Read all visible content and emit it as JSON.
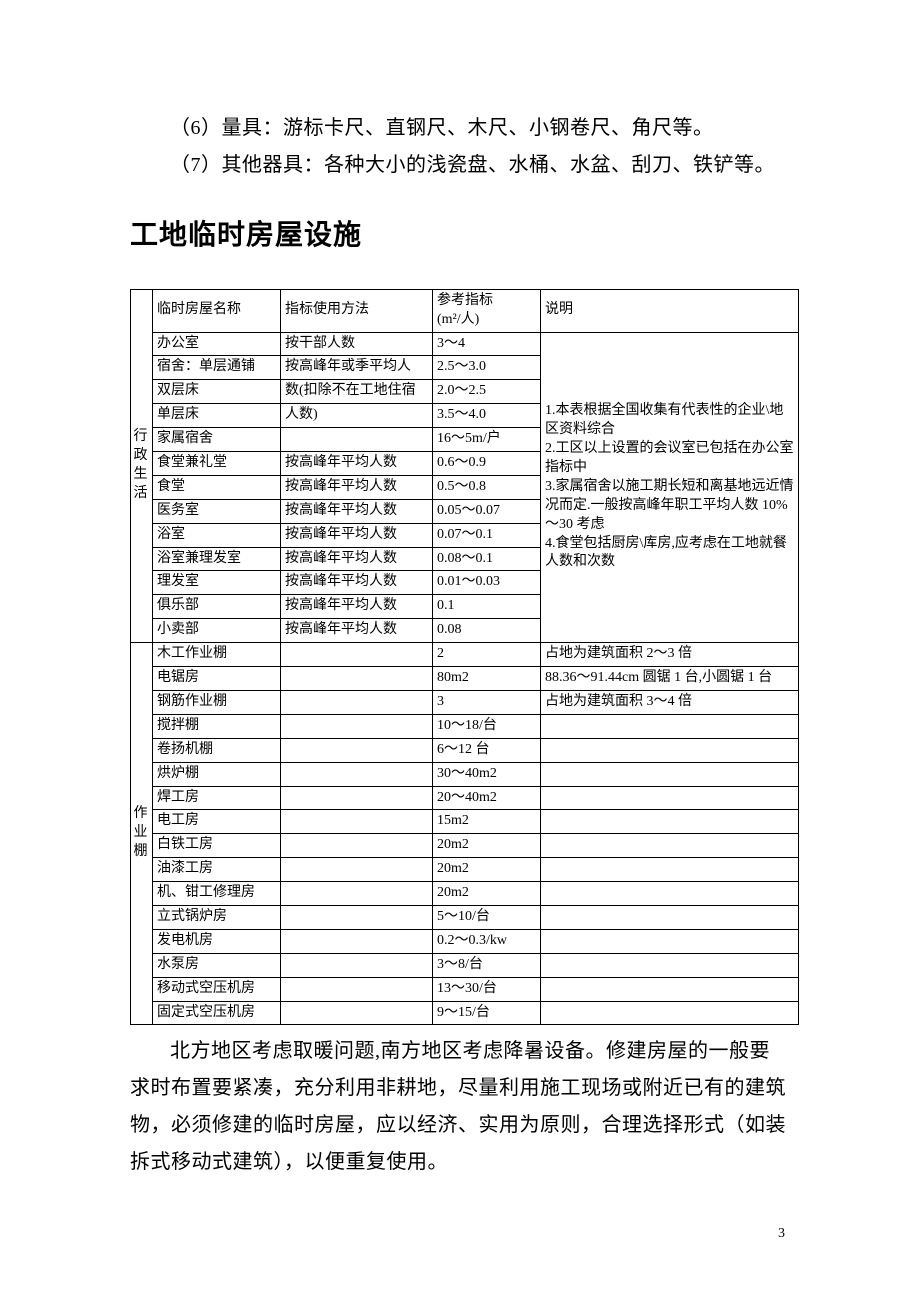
{
  "intro": {
    "p6": "（6）量具：游标卡尺、直钢尺、木尺、小钢卷尺、角尺等。",
    "p7": "（7）其他器具：各种大小的浅瓷盘、水桶、水盆、刮刀、铁铲等。"
  },
  "heading": "工地临时房屋设施",
  "table": {
    "header": {
      "col1": "临时房屋名称",
      "col2": "指标使用方法",
      "col3_line1": "参考指标",
      "col3_line2": "(m²/人)",
      "col4": "说明"
    },
    "group1": {
      "label": "行政生活",
      "note": "1.本表根据全国收集有代表性的企业\\地区资料综合\n2.工区以上设置的会议室已包括在办公室指标中\n3.家属宿舍以施工期长短和离基地远近情况而定.一般按高峰年职工平均人数 10%～30 考虑\n4.食堂包括厨房\\库房,应考虑在工地就餐人数和次数",
      "rows": [
        {
          "name": "办公室",
          "method": "按干部人数",
          "ref": "3～4"
        },
        {
          "name": "宿舍：单层通铺",
          "method": "按高峰年或季平均人",
          "ref": "2.5～3.0"
        },
        {
          "name": "双层床",
          "method": "数(扣除不在工地住宿",
          "ref": "2.0～2.5"
        },
        {
          "name": "单层床",
          "method": "人数)",
          "ref": "3.5～4.0"
        },
        {
          "name": "家属宿舍",
          "method": "",
          "ref": "16～5m/户"
        },
        {
          "name": "食堂兼礼堂",
          "method": "按高峰年平均人数",
          "ref": "0.6～0.9"
        },
        {
          "name": "食堂",
          "method": "按高峰年平均人数",
          "ref": "0.5～0.8"
        },
        {
          "name": "医务室",
          "method": "按高峰年平均人数",
          "ref": "0.05～0.07"
        },
        {
          "name": "浴室",
          "method": "按高峰年平均人数",
          "ref": "0.07～0.1"
        },
        {
          "name": "浴室兼理发室",
          "method": "按高峰年平均人数",
          "ref": "0.08～0.1"
        },
        {
          "name": "理发室",
          "method": "按高峰年平均人数",
          "ref": "0.01～0.03"
        },
        {
          "name": "俱乐部",
          "method": "按高峰年平均人数",
          "ref": "0.1"
        },
        {
          "name": "小卖部",
          "method": "按高峰年平均人数",
          "ref": "0.08"
        }
      ]
    },
    "group2": {
      "label": "作业棚",
      "rows": [
        {
          "name": "木工作业棚",
          "method": "",
          "ref": "2",
          "note": "占地为建筑面积 2～3 倍"
        },
        {
          "name": "电锯房",
          "method": "",
          "ref": "80m2",
          "note": "88.36～91.44cm 圆锯 1 台,小圆锯 1 台"
        },
        {
          "name": "钢筋作业棚",
          "method": "",
          "ref": "3",
          "note": "占地为建筑面积 3～4 倍"
        },
        {
          "name": "搅拌棚",
          "method": "",
          "ref": "10～18/台",
          "note": ""
        },
        {
          "name": "卷扬机棚",
          "method": "",
          "ref": "6～12 台",
          "note": ""
        },
        {
          "name": "烘炉棚",
          "method": "",
          "ref": "30～40m2",
          "note": ""
        },
        {
          "name": "焊工房",
          "method": "",
          "ref": "20～40m2",
          "note": ""
        },
        {
          "name": "电工房",
          "method": "",
          "ref": "15m2",
          "note": ""
        },
        {
          "name": "白铁工房",
          "method": "",
          "ref": "20m2",
          "note": ""
        },
        {
          "name": "油漆工房",
          "method": "",
          "ref": "20m2",
          "note": ""
        },
        {
          "name": "机、钳工修理房",
          "method": "",
          "ref": "20m2",
          "note": ""
        },
        {
          "name": "立式锅炉房",
          "method": "",
          "ref": "5～10/台",
          "note": ""
        },
        {
          "name": "发电机房",
          "method": "",
          "ref": "0.2～0.3/kw",
          "note": ""
        },
        {
          "name": "水泵房",
          "method": "",
          "ref": "3～8/台",
          "note": ""
        },
        {
          "name": "移动式空压机房",
          "method": "",
          "ref": "13～30/台",
          "note": ""
        },
        {
          "name": "固定式空压机房",
          "method": "",
          "ref": "9～15/台",
          "note": ""
        }
      ]
    }
  },
  "footer_para": "北方地区考虑取暖问题,南方地区考虑降暑设备。修建房屋的一般要求时布置要紧凑，充分利用非耕地，尽量利用施工现场或附近已有的建筑物，必须修建的临时房屋，应以经济、实用为原则，合理选择形式（如装拆式移动式建筑），以便重复使用。",
  "page_number": "3",
  "styling": {
    "body_font_size": 20,
    "table_font_size": 14,
    "heading_font_size": 28,
    "text_color": "#000000",
    "border_color": "#000000",
    "background": "#ffffff",
    "line_height_para": 1.85,
    "line_height_cell": 1.35
  }
}
